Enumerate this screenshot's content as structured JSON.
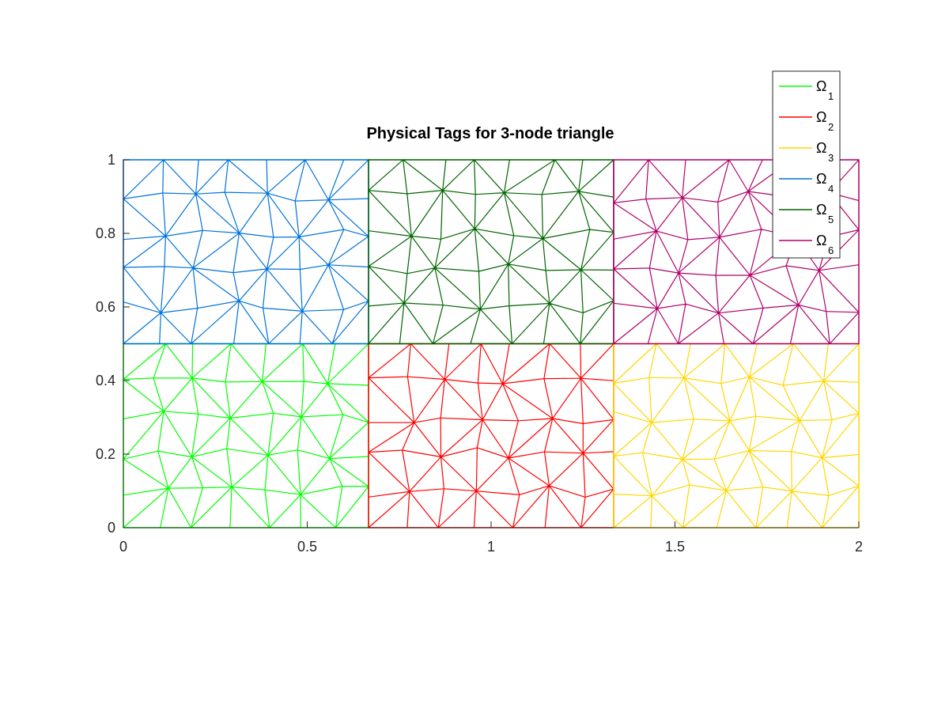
{
  "chart_data": {
    "type": "mesh",
    "title": "Physical Tags for 3-node triangle",
    "xlabel": "",
    "ylabel": "",
    "xlim": [
      0,
      2
    ],
    "ylim": [
      0,
      1
    ],
    "xticks": [
      0,
      0.5,
      1,
      1.5,
      2
    ],
    "xtick_labels": [
      "0",
      "0.5",
      "1",
      "1.5",
      "2"
    ],
    "yticks": [
      0,
      0.2,
      0.4,
      0.6,
      0.8,
      1
    ],
    "ytick_labels": [
      "0",
      "0.2",
      "0.4",
      "0.6",
      "0.8",
      "1"
    ],
    "grid": false,
    "legend_position": "top-right",
    "regions": [
      {
        "name": "Ω1",
        "symbol": "Ω",
        "subscript": "1",
        "color": "#00ff00",
        "x": [
          0,
          0.6667
        ],
        "y": [
          0,
          0.5
        ]
      },
      {
        "name": "Ω2",
        "symbol": "Ω",
        "subscript": "2",
        "color": "#ff0000",
        "x": [
          0.6667,
          1.3333
        ],
        "y": [
          0,
          0.5
        ]
      },
      {
        "name": "Ω3",
        "symbol": "Ω",
        "subscript": "3",
        "color": "#ffd700",
        "x": [
          1.3333,
          2
        ],
        "y": [
          0,
          0.5
        ]
      },
      {
        "name": "Ω4",
        "symbol": "Ω",
        "subscript": "4",
        "color": "#0072d9",
        "x": [
          0,
          0.6667
        ],
        "y": [
          0.5,
          1
        ]
      },
      {
        "name": "Ω5",
        "symbol": "Ω",
        "subscript": "5",
        "color": "#006400",
        "x": [
          0.6667,
          1.3333
        ],
        "y": [
          0.5,
          1
        ]
      },
      {
        "name": "Ω6",
        "symbol": "Ω",
        "subscript": "6",
        "color": "#b0006a",
        "x": [
          1.3333,
          2
        ],
        "y": [
          0.5,
          1
        ]
      }
    ]
  }
}
